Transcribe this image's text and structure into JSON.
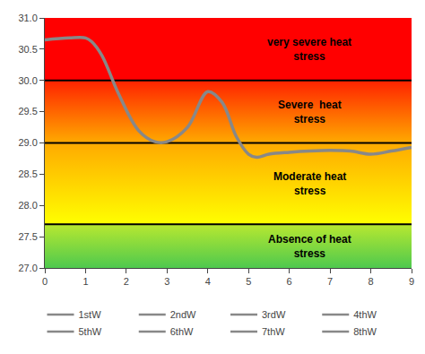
{
  "chart_data": {
    "type": "line",
    "x": [
      0.0,
      0.6,
      1.0,
      1.15,
      1.4,
      1.8,
      2.3,
      2.7,
      3.0,
      3.5,
      4.0,
      4.35,
      4.7,
      5.0,
      5.2,
      5.5,
      6.0,
      6.5,
      7.0,
      7.5,
      8.0,
      8.5,
      9.0
    ],
    "series": [
      {
        "values": [
          30.65,
          30.68,
          30.68,
          30.62,
          30.4,
          29.8,
          29.2,
          29.02,
          29.02,
          29.25,
          29.82,
          29.65,
          29.1,
          28.82,
          28.77,
          28.82,
          28.85,
          28.87,
          28.88,
          28.87,
          28.82,
          28.87,
          28.93
        ],
        "color": "#888888",
        "line_style": "solid"
      }
    ],
    "xlim": [
      0,
      9
    ],
    "xticks": [
      0,
      1,
      2,
      3,
      4,
      5,
      6,
      7,
      8,
      9
    ],
    "ylim": [
      27,
      31
    ],
    "yticks": [
      {
        "value": 27,
        "label": "27.0"
      },
      {
        "value": 27.5,
        "label": "27.5"
      },
      {
        "value": 28,
        "label": "28.0"
      },
      {
        "value": 28.5,
        "label": "28.5"
      },
      {
        "value": 29,
        "label": "29.0"
      },
      {
        "value": 29.5,
        "label": "29.5"
      },
      {
        "value": 30,
        "label": "30.0"
      },
      {
        "value": 30.5,
        "label": "30.5"
      },
      {
        "value": 31,
        "label": "31.0"
      }
    ],
    "grid": false,
    "zones": [
      {
        "from": 27,
        "to": 27.7,
        "colors": [
          "#4ec94e",
          "#b8e830"
        ]
      },
      {
        "from": 27.7,
        "to": 29.0,
        "colors": [
          "#ffff00",
          "#ffaa00"
        ]
      },
      {
        "from": 29.0,
        "to": 30.0,
        "colors": [
          "#ffaa00",
          "#ff2200"
        ]
      },
      {
        "from": 30.0,
        "to": 31,
        "colors": [
          "#ff0000",
          "#ff0000"
        ]
      }
    ],
    "boundary_lines": [
      27.7,
      29.0,
      30.0
    ],
    "boundary_color": "black",
    "annotations": [
      {
        "text": "Absence of heat\nstress",
        "x": 6.5,
        "y": 27.35,
        "color": "black"
      },
      {
        "text": "Moderate heat\nstress",
        "x": 6.5,
        "y": 28.35,
        "color": "black"
      },
      {
        "text": "Severe  heat\nstress",
        "x": 6.5,
        "y": 29.5,
        "color": "black"
      },
      {
        "text": "very severe heat\nstress",
        "x": 6.5,
        "y": 30.5,
        "color": "black"
      }
    ],
    "legend": "bottom",
    "legend_labels": [
      "1stW",
      "2ndW",
      "3rdW",
      "4thW",
      "5thW",
      "6thW",
      "7thW",
      "8thW"
    ],
    "legend_color": "#888888"
  }
}
